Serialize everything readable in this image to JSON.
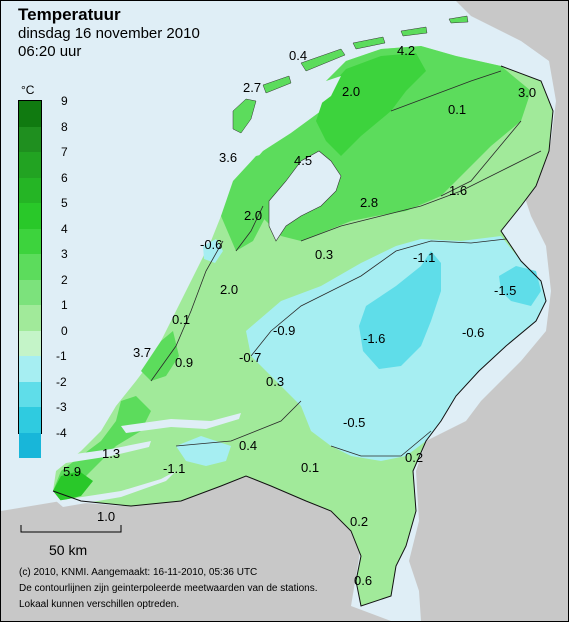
{
  "title": "Temperatuur",
  "date_line": "dinsdag 16 november 2010",
  "time_line": "06:20 uur",
  "legend": {
    "unit": "°C",
    "ticks": [
      "9",
      "8",
      "7",
      "6",
      "5",
      "4",
      "3",
      "2",
      "1",
      "0",
      "-1",
      "-2",
      "-3",
      "-4"
    ],
    "colors": [
      "#107a10",
      "#1f8f1f",
      "#22a322",
      "#25b525",
      "#29c829",
      "#3dd33d",
      "#5cdc5c",
      "#7ce27c",
      "#a1ea9a",
      "#c4f4c8",
      "#a6eef2",
      "#5fdde9",
      "#2fcbe0",
      "#18b6d9"
    ]
  },
  "station_values": [
    {
      "label": "0.4"
    },
    {
      "label": "4.2"
    },
    {
      "label": "2.7"
    },
    {
      "label": "2.0"
    },
    {
      "label": "0.1"
    },
    {
      "label": "3.0"
    },
    {
      "label": "3.6"
    },
    {
      "label": "4.5"
    },
    {
      "label": "1.6"
    },
    {
      "label": "2.8"
    },
    {
      "label": "2.0"
    },
    {
      "label": "-0.6"
    },
    {
      "label": "0.3"
    },
    {
      "label": "-1.1"
    },
    {
      "label": "-1.5"
    },
    {
      "label": "2.0"
    },
    {
      "label": "0.1"
    },
    {
      "label": "-0.9"
    },
    {
      "label": "-1.6"
    },
    {
      "label": "-0.6"
    },
    {
      "label": "3.7"
    },
    {
      "label": "0.9"
    },
    {
      "label": "-0.7"
    },
    {
      "label": "0.3"
    },
    {
      "label": "-0.5"
    },
    {
      "label": "0.4"
    },
    {
      "label": "1.3"
    },
    {
      "label": "-1.1"
    },
    {
      "label": "0.2"
    },
    {
      "label": "5.9"
    },
    {
      "label": "0.1"
    },
    {
      "label": "1.0"
    },
    {
      "label": "0.2"
    },
    {
      "label": "0.6"
    }
  ],
  "scale": {
    "label": "50 km"
  },
  "footer": [
    "(c) 2010, KNMI. Aangemaakt: 16-11-2010, 05:36 UTC",
    "De contourlijnen zijn geinterpoleerde meetwaarden van de stations.",
    "Lokaal kunnen verschillen optreden."
  ]
}
